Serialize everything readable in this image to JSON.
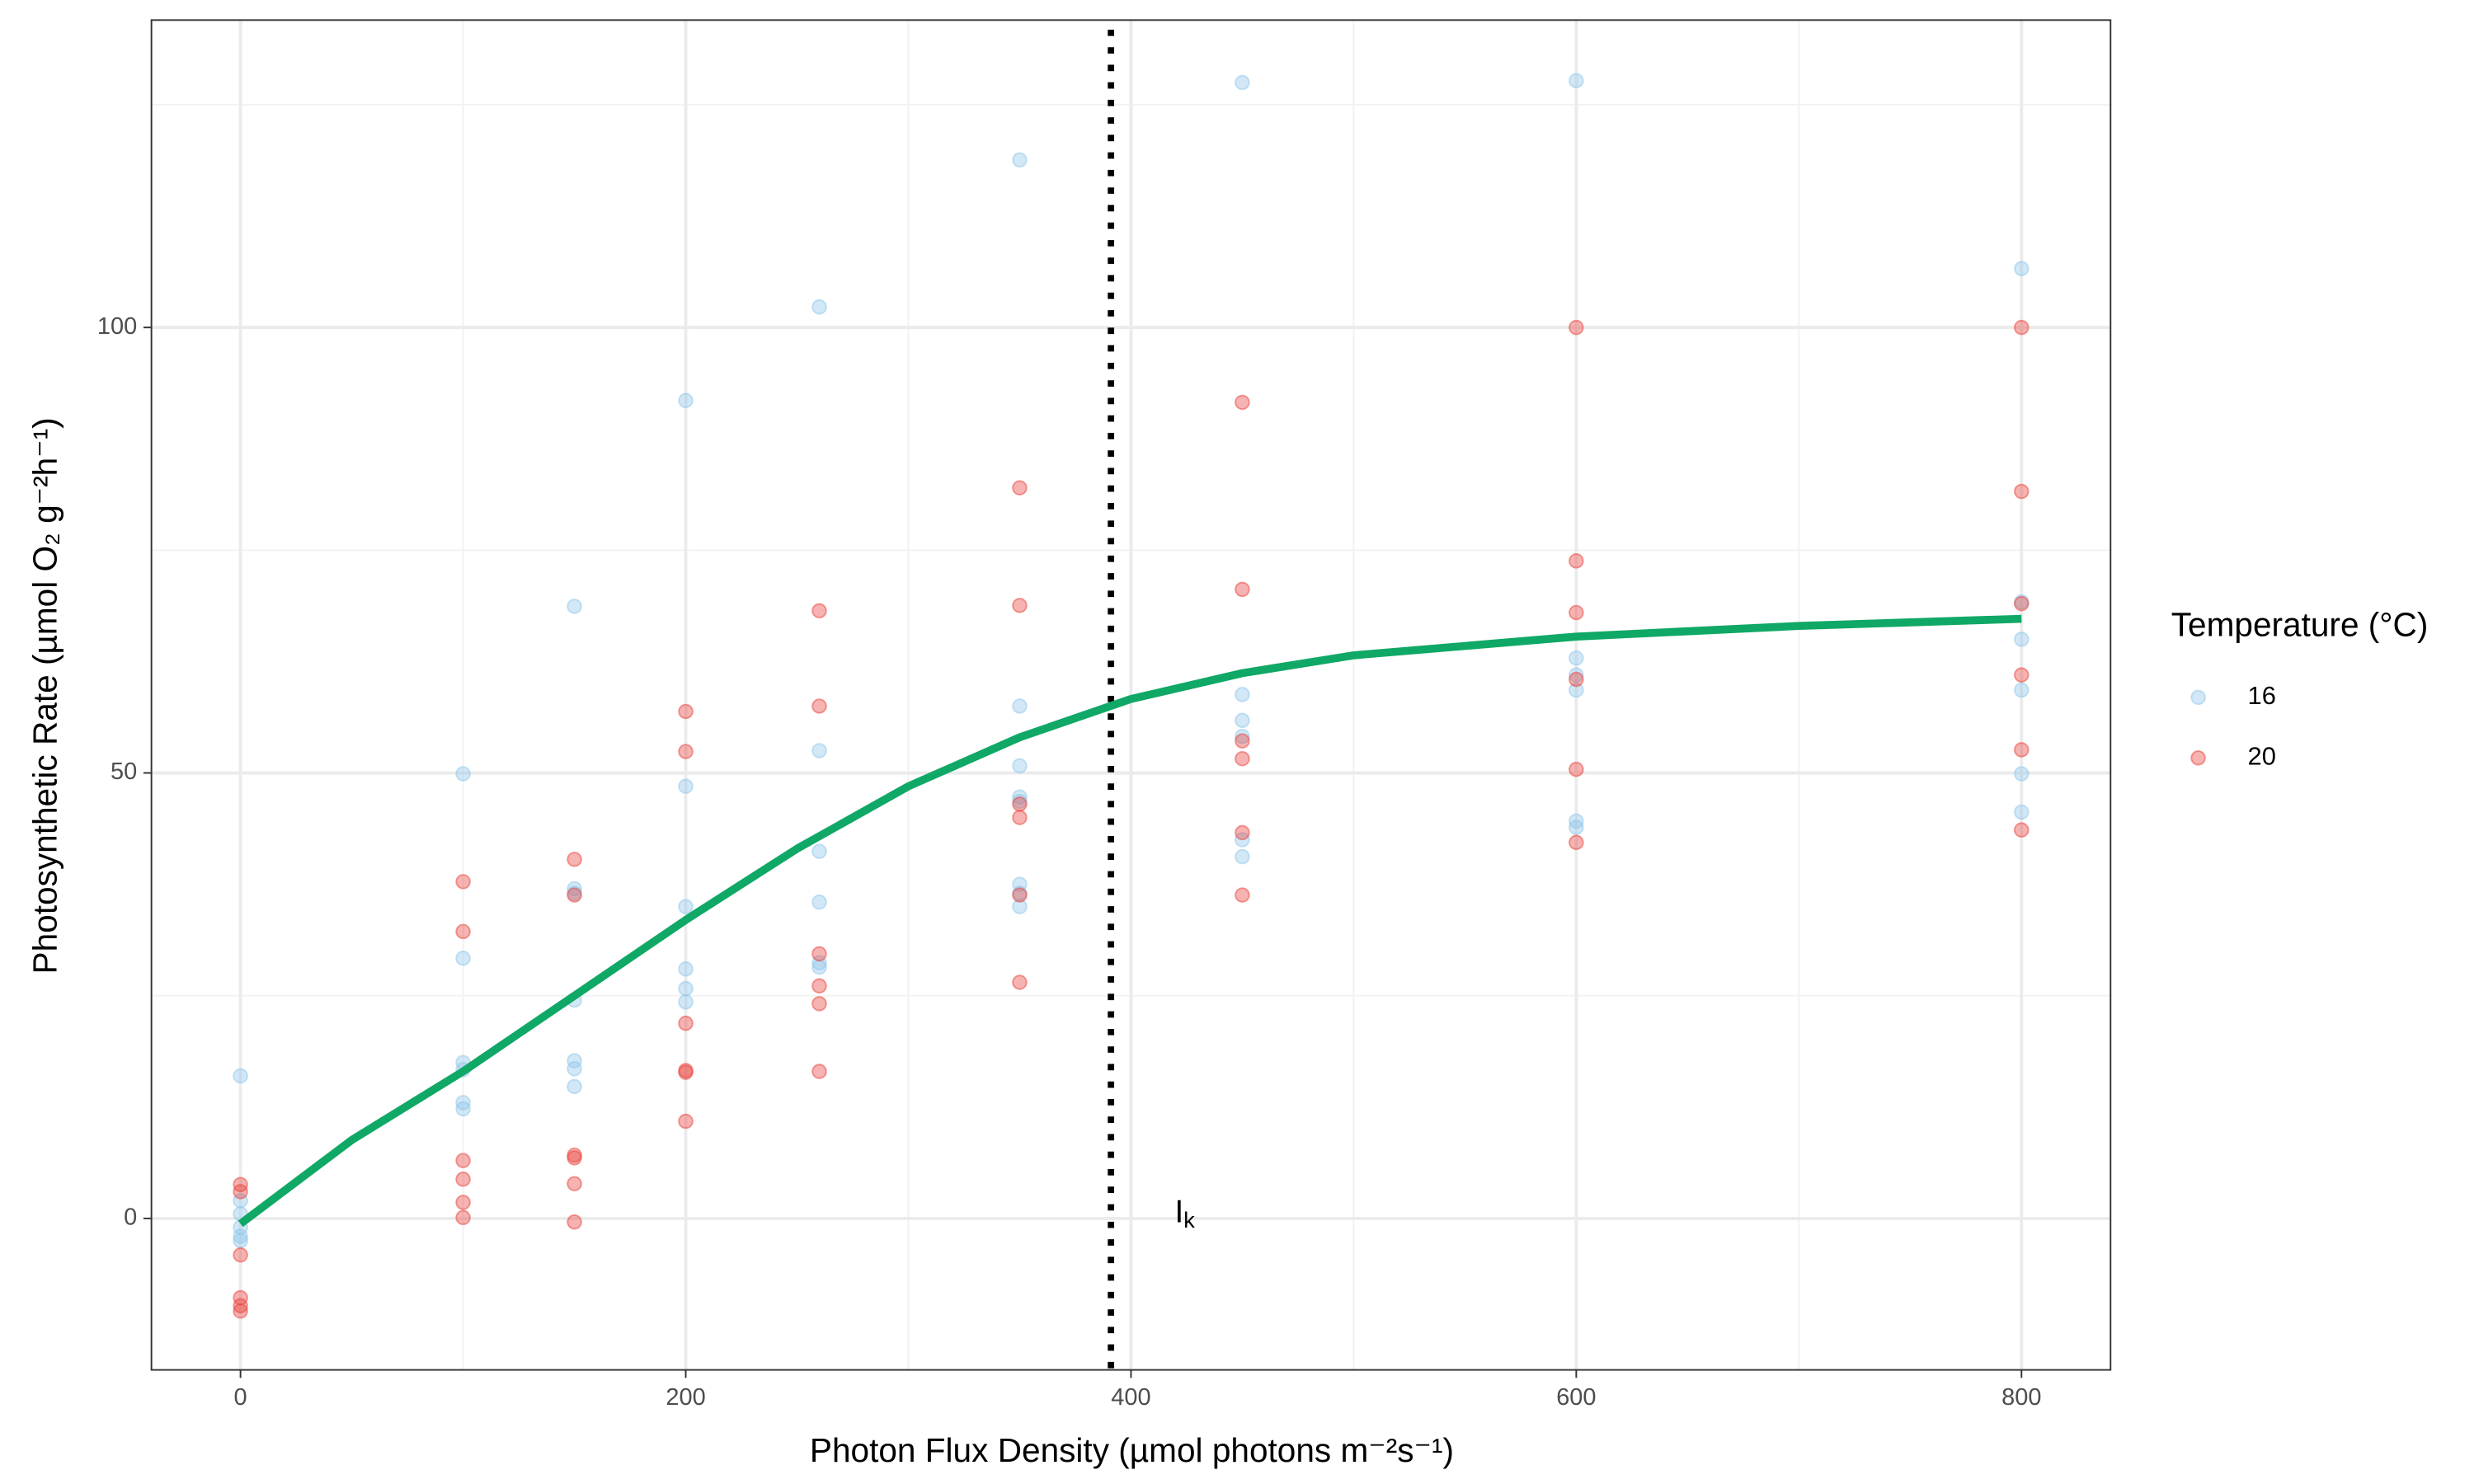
{
  "chart_data": {
    "type": "scatter",
    "xlabel": "Photon Flux Density (µmol photons m⁻²s⁻¹)",
    "ylabel": "Photosynthetic Rate (µmol O₂ g⁻²h⁻¹)",
    "xlim": [
      -40,
      840
    ],
    "ylim": [
      -17,
      134.5
    ],
    "xticks": [
      0,
      200,
      400,
      600,
      800
    ],
    "yticks": [
      0,
      50,
      100
    ],
    "xminor": [
      100,
      300,
      500,
      700
    ],
    "yminor": [
      25,
      75,
      125
    ],
    "grid": true,
    "point_opacity": 0.4,
    "legend_title": "Temperature (°C)",
    "legend_position": "right",
    "series": [
      {
        "name": "16",
        "color": "#8ec5ea",
        "x": [
          0,
          0,
          0,
          0,
          0,
          0,
          100,
          100,
          100,
          100,
          100,
          100,
          150,
          150,
          150,
          150,
          150,
          150,
          150,
          200,
          200,
          200,
          200,
          200,
          200,
          260,
          260,
          260,
          260,
          260,
          260,
          350,
          350,
          350,
          350,
          350,
          350,
          350,
          350,
          450,
          450,
          450,
          450,
          450,
          450,
          600,
          600,
          600,
          600,
          600,
          600,
          800,
          800,
          800,
          800,
          800,
          800
        ],
        "values": [
          16,
          2,
          0.5,
          -1,
          -2,
          -2.5,
          49.9,
          29.2,
          17.5,
          16.7,
          13,
          12.3,
          68.7,
          37,
          36.5,
          24.5,
          17.7,
          16.8,
          14.8,
          91.8,
          48.5,
          35,
          28,
          25.8,
          24.3,
          102.3,
          52.5,
          41.2,
          35.5,
          28.7,
          28.2,
          118.8,
          57.5,
          50.8,
          47.3,
          46.8,
          37.5,
          36.5,
          35,
          127.5,
          58.8,
          55.9,
          54.1,
          42.5,
          40.6,
          127.7,
          62.9,
          61,
          59.3,
          44.6,
          43.9,
          106.6,
          69.2,
          65,
          59.3,
          49.9,
          45.6
        ]
      },
      {
        "name": "20",
        "color": "#e8413c",
        "x": [
          0,
          0,
          0,
          0,
          0,
          0,
          100,
          100,
          100,
          100,
          100,
          100,
          150,
          150,
          150,
          150,
          150,
          150,
          200,
          200,
          200,
          200,
          200,
          200,
          260,
          260,
          260,
          260,
          260,
          260,
          350,
          350,
          350,
          350,
          350,
          350,
          450,
          450,
          450,
          450,
          450,
          450,
          600,
          600,
          600,
          600,
          600,
          600,
          800,
          800,
          800,
          800,
          800,
          800
        ],
        "values": [
          3.8,
          3,
          -4.1,
          -8.9,
          -9.8,
          -10.4,
          37.8,
          32.2,
          6.5,
          4.4,
          1.8,
          0.1,
          40.3,
          36.3,
          7.1,
          6.8,
          3.9,
          -0.4,
          56.9,
          52.4,
          21.9,
          16.6,
          16.4,
          10.9,
          68.2,
          57.5,
          29.7,
          26.1,
          24.1,
          16.5,
          82,
          68.8,
          46.5,
          45,
          36.3,
          26.5,
          91.6,
          70.6,
          53.6,
          51.6,
          43.3,
          36.3,
          100,
          73.8,
          68,
          60.5,
          50.4,
          42.2,
          100,
          81.6,
          69,
          61,
          52.6,
          43.6
        ]
      }
    ],
    "fit": {
      "color": "#10a866",
      "x": [
        0,
        50,
        100,
        150,
        200,
        250,
        300,
        350,
        400,
        450,
        500,
        600,
        700,
        800
      ],
      "values": [
        -0.6,
        8.8,
        16.5,
        25,
        33.5,
        41.5,
        48.5,
        54,
        58.3,
        61.2,
        63.2,
        65.3,
        66.5,
        67.3
      ]
    },
    "vline": {
      "x": 391,
      "label": "I",
      "label_sub": "k"
    }
  }
}
